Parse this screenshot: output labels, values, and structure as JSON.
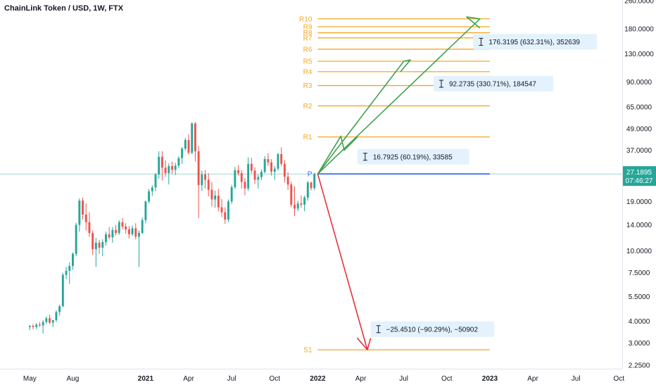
{
  "header": {
    "title": "ChainLink Token / USD, 1W, FTX"
  },
  "colors": {
    "up": "#26a69a",
    "down": "#ef5350",
    "upBody": "#22ab94",
    "level": "#f5a623",
    "pivot": "#2962ff",
    "arrowUp": "#3fa34d",
    "arrowDown": "#e8323c",
    "boxFill": "#e3f2fd",
    "priceTag": "#26a69a"
  },
  "chart_data": {
    "type": "candlestick",
    "scale": "log",
    "ylim": [
      2.15,
      262
    ],
    "y_ticks": [
      {
        "value": 260,
        "label": "260.0000"
      },
      {
        "value": 180,
        "label": "180.0000"
      },
      {
        "value": 130,
        "label": "130.0000"
      },
      {
        "value": 90,
        "label": "90.0000"
      },
      {
        "value": 65,
        "label": "65.0000"
      },
      {
        "value": 49,
        "label": "49.0000"
      },
      {
        "value": 37,
        "label": "37.0000"
      },
      {
        "value": 19,
        "label": "19.0000"
      },
      {
        "value": 14,
        "label": "14.0000"
      },
      {
        "value": 10,
        "label": "10.0000"
      },
      {
        "value": 7.5,
        "label": "7.5000"
      },
      {
        "value": 5.5,
        "label": "5.5000"
      },
      {
        "value": 4,
        "label": "4.0000"
      },
      {
        "value": 3,
        "label": "3.0000"
      },
      {
        "value": 2.25,
        "label": "2.2500"
      }
    ],
    "x_ticks": [
      {
        "label": "May",
        "week": 0
      },
      {
        "label": "Aug",
        "week": 13
      },
      {
        "label": "2021",
        "week": 35
      },
      {
        "label": "Apr",
        "week": 48
      },
      {
        "label": "Jul",
        "week": 61
      },
      {
        "label": "Oct",
        "week": 74
      },
      {
        "label": "2022",
        "week": 87
      },
      {
        "label": "Apr",
        "week": 100
      },
      {
        "label": "Jul",
        "week": 113
      },
      {
        "label": "Oct",
        "week": 126
      },
      {
        "label": "2023",
        "week": 139
      },
      {
        "label": "Apr",
        "week": 152
      },
      {
        "label": "Jul",
        "week": 165
      },
      {
        "label": "Oct",
        "week": 178
      }
    ],
    "week_range": [
      -9,
      179
    ],
    "current_price": {
      "value": 27.1895,
      "label": "27.1895",
      "countdown": "07:46:27"
    },
    "pivot": {
      "label": "P",
      "value": 27.19,
      "start_week": 87,
      "end_week": 139
    },
    "levels": [
      {
        "label": "R10",
        "value": 205
      },
      {
        "label": "R9",
        "value": 185
      },
      {
        "label": "R8",
        "value": 171
      },
      {
        "label": "R7",
        "value": 160
      },
      {
        "label": "R6",
        "value": 138
      },
      {
        "label": "R5",
        "value": 118
      },
      {
        "label": "R4",
        "value": 103
      },
      {
        "label": "R3",
        "value": 86
      },
      {
        "label": "R2",
        "value": 66
      },
      {
        "label": "R1",
        "value": 44
      },
      {
        "label": "S1",
        "value": 2.75
      }
    ],
    "levels_start_week": 87,
    "levels_end_week": 139,
    "arrows": [
      {
        "dir": "up",
        "points": [
          [
            87,
            27.19
          ],
          [
            94,
            44.5
          ],
          [
            95,
            37
          ],
          [
            99,
            44
          ]
        ]
      },
      {
        "dir": "up",
        "points": [
          [
            87,
            27.19
          ],
          [
            113,
            118
          ],
          [
            115,
            120
          ],
          [
            112,
            103
          ]
        ]
      },
      {
        "dir": "up",
        "points": [
          [
            87,
            27.19
          ],
          [
            136,
            205
          ],
          [
            132,
            210
          ],
          [
            136,
            182
          ]
        ]
      },
      {
        "dir": "down",
        "points": [
          [
            87,
            27.19
          ],
          [
            102,
            2.75
          ],
          [
            99,
            3.2
          ],
          [
            102,
            2.75
          ],
          [
            103,
            3.2
          ]
        ]
      }
    ],
    "measures": [
      {
        "text": "176.3195 (632.31%), 352639",
        "week": 134,
        "value": 152
      },
      {
        "text": "92.2735 (330.71%), 184547",
        "week": 122,
        "value": 88
      },
      {
        "text": "16.7925 (60.19%), 33585",
        "week": 99,
        "value": 34
      },
      {
        "text": "−25.4510 (−90.29%), −50902",
        "week": 103,
        "value": 3.6
      }
    ],
    "candles": [
      [
        3.7,
        3.8,
        3.55,
        3.75
      ],
      [
        3.75,
        3.85,
        3.6,
        3.7
      ],
      [
        3.7,
        3.9,
        3.6,
        3.82
      ],
      [
        3.82,
        3.95,
        3.7,
        3.78
      ],
      [
        3.78,
        4.05,
        3.4,
        3.95
      ],
      [
        3.95,
        4.25,
        3.85,
        4.15
      ],
      [
        4.15,
        4.35,
        3.85,
        3.92
      ],
      [
        3.92,
        4.05,
        3.7,
        4.05
      ],
      [
        4.05,
        4.6,
        3.95,
        4.5
      ],
      [
        4.5,
        4.95,
        4.3,
        4.85
      ],
      [
        4.85,
        7.5,
        4.8,
        7.3
      ],
      [
        7.3,
        8.1,
        6.9,
        7.7
      ],
      [
        7.7,
        8.6,
        6.5,
        8.2
      ],
      [
        8.2,
        9.8,
        7.8,
        9.6
      ],
      [
        9.6,
        14.4,
        9.3,
        14
      ],
      [
        14,
        19.8,
        12.8,
        19.2
      ],
      [
        19.2,
        20,
        15,
        16
      ],
      [
        16,
        18.5,
        13,
        14.5
      ],
      [
        14.5,
        16.5,
        12,
        12.6
      ],
      [
        12.6,
        13,
        9.5,
        10.2
      ],
      [
        10.2,
        11.8,
        8.1,
        11.1
      ],
      [
        11.1,
        11.5,
        9.6,
        10.4
      ],
      [
        10.4,
        11.6,
        9.3,
        11.2
      ],
      [
        11.2,
        12.8,
        10.7,
        12.4
      ],
      [
        12.4,
        13.6,
        11.6,
        11.9
      ],
      [
        11.9,
        13.6,
        11.1,
        13.1
      ],
      [
        13.1,
        14,
        12.2,
        12.6
      ],
      [
        12.6,
        14.9,
        12.3,
        14.5
      ],
      [
        14.5,
        15.3,
        13.2,
        13.7
      ],
      [
        13.7,
        14.3,
        12.5,
        13.2
      ],
      [
        13.2,
        13.8,
        11.7,
        12.4
      ],
      [
        12.4,
        13.9,
        12.1,
        13.4
      ],
      [
        13.4,
        14.3,
        11.6,
        12
      ],
      [
        12,
        13,
        8.1,
        12.6
      ],
      [
        12.6,
        15.4,
        12.4,
        14.9
      ],
      [
        14.9,
        19.2,
        14.3,
        19
      ],
      [
        19,
        22.4,
        18.5,
        21.7
      ],
      [
        21.7,
        23.5,
        20.4,
        22.8
      ],
      [
        22.8,
        27.5,
        21.7,
        27
      ],
      [
        27,
        36.5,
        25.6,
        34
      ],
      [
        34,
        36.6,
        25,
        29.5
      ],
      [
        29.5,
        32.4,
        26.2,
        27.5
      ],
      [
        27.5,
        31.2,
        23.7,
        30.1
      ],
      [
        30.1,
        31.9,
        27.2,
        28.7
      ],
      [
        28.7,
        31.5,
        26.8,
        30.3
      ],
      [
        30.3,
        34.2,
        29.3,
        33.4
      ],
      [
        33.4,
        38.6,
        31,
        37.8
      ],
      [
        37.8,
        43.5,
        36.8,
        42.3
      ],
      [
        42.3,
        45.6,
        34.9,
        35.8
      ],
      [
        35.8,
        53.2,
        35.2,
        52.5
      ],
      [
        52.5,
        53.5,
        32,
        36.5
      ],
      [
        36.5,
        39.2,
        15.3,
        23.5
      ],
      [
        23.5,
        28.4,
        21.8,
        27
      ],
      [
        27,
        28.6,
        22.5,
        25.2
      ],
      [
        25.2,
        27.4,
        20.3,
        22.1
      ],
      [
        22.1,
        24.5,
        17.8,
        19.5
      ],
      [
        19.5,
        21.9,
        17.5,
        20.5
      ],
      [
        20.5,
        22.4,
        16.7,
        17.6
      ],
      [
        17.6,
        19.6,
        15.5,
        16.5
      ],
      [
        16.5,
        17.6,
        14.2,
        15
      ],
      [
        15,
        19.5,
        14.5,
        19
      ],
      [
        19,
        23.6,
        18.4,
        22.9
      ],
      [
        22.9,
        29.8,
        22.3,
        28.5
      ],
      [
        28.5,
        30.5,
        26.6,
        27.5
      ],
      [
        27.5,
        28.6,
        22.5,
        24.5
      ],
      [
        24.5,
        25.8,
        20.6,
        22.5
      ],
      [
        22.5,
        33.8,
        21.8,
        31
      ],
      [
        31,
        33.5,
        27.4,
        28.4
      ],
      [
        28.4,
        29.6,
        23.8,
        25.2
      ],
      [
        25.2,
        27,
        22.5,
        26.1
      ],
      [
        26.1,
        28.8,
        25.1,
        27.9
      ],
      [
        27.9,
        34.3,
        27.4,
        33
      ],
      [
        33,
        35.5,
        30.2,
        31.6
      ],
      [
        31.6,
        33,
        26.6,
        28
      ],
      [
        28,
        30.1,
        25.2,
        29.1
      ],
      [
        29.1,
        35.8,
        28.4,
        35.2
      ],
      [
        35.2,
        38.4,
        30,
        31
      ],
      [
        31,
        32.6,
        24.3,
        26.2
      ],
      [
        26.2,
        27.8,
        22.1,
        23.7
      ],
      [
        23.7,
        24.5,
        17.6,
        18.2
      ],
      [
        18.2,
        23.2,
        15.7,
        17.3
      ],
      [
        17.3,
        19.2,
        16.8,
        18.5
      ],
      [
        18.5,
        20.5,
        17.5,
        18.2
      ],
      [
        18.2,
        20.5,
        16.7,
        20
      ],
      [
        20,
        24.8,
        19.2,
        24.3
      ],
      [
        24.3,
        24.6,
        21.9,
        22.6
      ],
      [
        22.6,
        27.6,
        22,
        27.19
      ]
    ]
  }
}
